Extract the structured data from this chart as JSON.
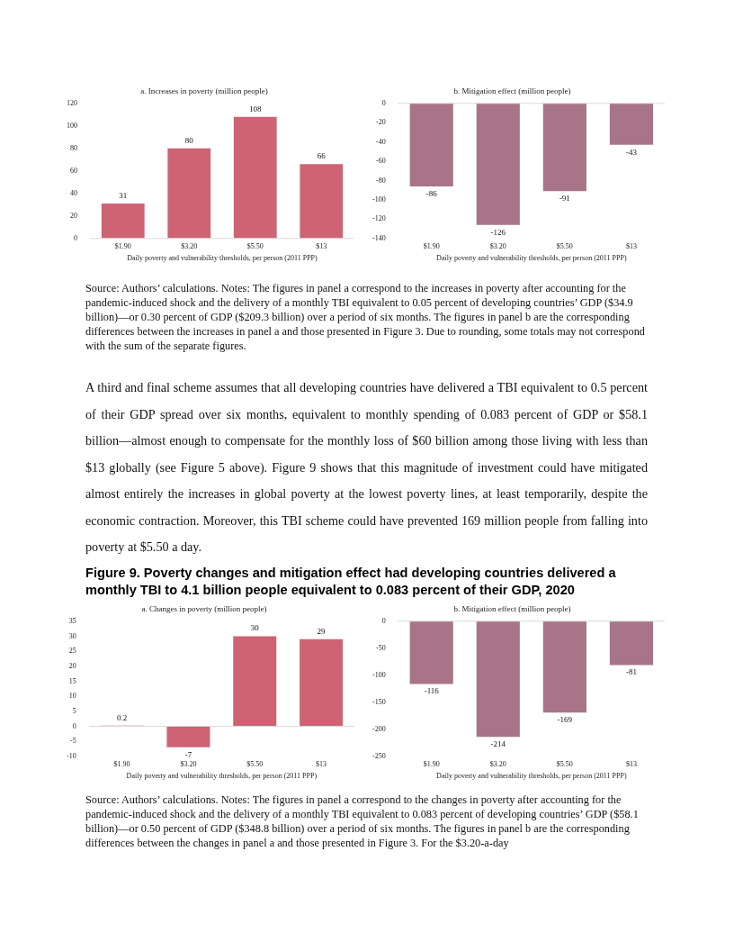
{
  "chart_data": [
    {
      "type": "bar",
      "title": "a. Increases in poverty (million people)",
      "xlabel": "Daily poverty and vulnerability thresholds, per person (2011 PPP)",
      "categories": [
        "$1.90",
        "$3.20",
        "$5.50",
        "$13"
      ],
      "values": [
        31,
        80,
        108,
        66
      ],
      "color": "#cd6373",
      "ylim": [
        0,
        120
      ],
      "yticks": [
        0,
        20,
        40,
        60,
        80,
        100,
        120
      ],
      "data_labels": true
    },
    {
      "type": "bar",
      "title": "b. Mitigation effect (million people)",
      "xlabel": "Daily poverty and vulnerability thresholds, per person (2011 PPP)",
      "categories": [
        "$1.90",
        "$3.20",
        "$5.50",
        "$13"
      ],
      "values": [
        -86,
        -126,
        -91,
        -43
      ],
      "color": "#a87487",
      "ylim": [
        -140,
        0
      ],
      "yticks": [
        -140,
        -120,
        -100,
        -80,
        -60,
        -40,
        -20,
        0
      ],
      "data_labels": true,
      "annotations": [
        "Source: Authors’ calculations. Notes: The figures in panel a correspond to the increases in poverty after accounting for the pandemic-induced shock and the delivery of a monthly TBI equivalent to 0.05 percent of developing countries’ GDP ($34.9 billion)—or 0.30 percent of GDP ($209.3 billion) over a period of six months. The figures in panel b are the corresponding differences between the increases in panel a and those presented in Figure 3. Due to rounding, some totals may not correspond with the sum of the separate figures.",
        "A third and final scheme assumes that all developing countries have delivered a TBI equivalent to 0.5 percent of their GDP spread over six months, equivalent to monthly spending of 0.083 percent of GDP or $58.1 billion—almost enough to compensate for the monthly loss of $60 billion among those living with less than $13 globally (see Figure 5 above). Figure 9 shows that this magnitude of investment could have mitigated almost entirely the increases in global poverty at the lowest poverty lines, at least temporarily, despite the economic contraction. Moreover, this TBI scheme could have prevented 169 million people from falling into poverty at $5.50 a day."
      ]
    },
    {
      "type": "other",
      "title": "Figure 9. Poverty changes and mitigation effect had developing countries delivered a monthly TBI to 4.1 billion people equivalent to 0.083 percent of their GDP, 2020"
    },
    {
      "type": "bar",
      "title": "a. Changes in poverty (million people)",
      "xlabel": "Daily poverty and vulnerability thresholds, per person (2011 PPP)",
      "categories": [
        "$1.90",
        "$3.20",
        "$5.50",
        "$13"
      ],
      "values": [
        0.2,
        -7,
        30,
        29
      ],
      "color": "#cd6373",
      "ylim": [
        -10,
        35
      ],
      "yticks": [
        -10,
        -5,
        0,
        5,
        10,
        15,
        20,
        25,
        30,
        35
      ],
      "data_labels": true
    },
    {
      "type": "bar",
      "title": "b. Mitigation effect (million people)",
      "xlabel": "Daily poverty and vulnerability thresholds, per person (2011 PPP)",
      "categories": [
        "$1.90",
        "$3.20",
        "$5.50",
        "$13"
      ],
      "values": [
        -116,
        -214,
        -169,
        -81
      ],
      "color": "#a87487",
      "ylim": [
        -250,
        0
      ],
      "yticks": [
        -250,
        -200,
        -150,
        -100,
        -50,
        0
      ],
      "data_labels": true,
      "annotations": [
        "Source: Authors’ calculations. Notes: The figures in panel a correspond to the changes in poverty after accounting for the pandemic-induced shock and the delivery of a monthly TBI equivalent to 0.083 percent of developing countries’ GDP ($58.1 billion)—or 0.50 percent of GDP ($348.8 billion) over a period of six months. The figures in panel b are the corresponding differences between the changes in panel a and those presented in Figure 3. For the $3.20-a-day"
      ]
    }
  ]
}
